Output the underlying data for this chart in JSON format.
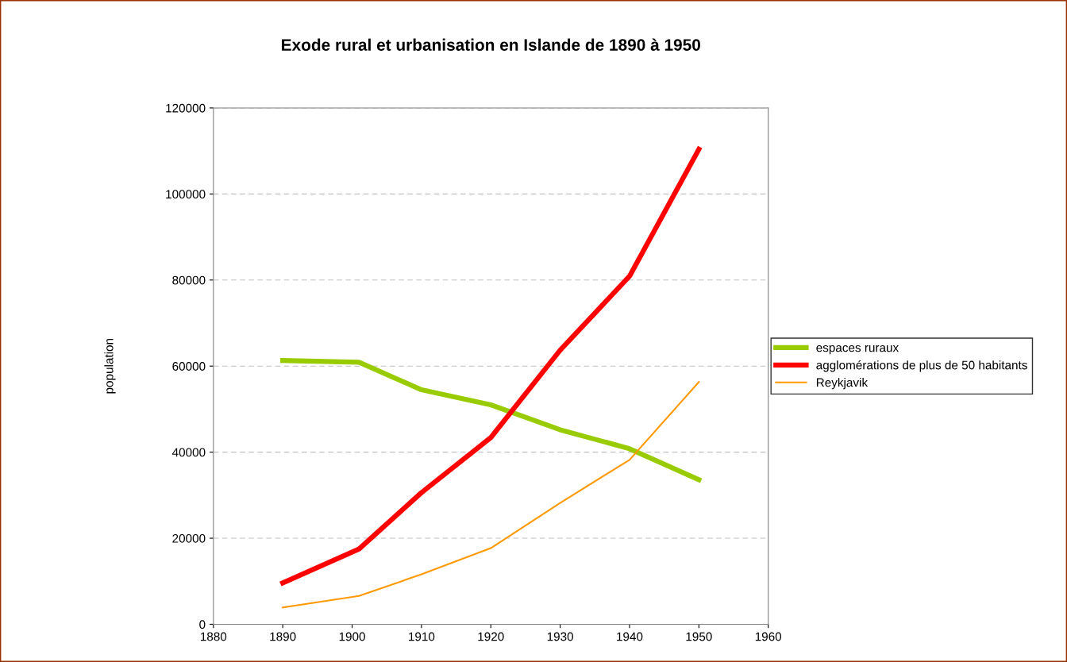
{
  "chart_data": {
    "type": "line",
    "title": "Exode rural et urbanisation en Islande de 1890 à 1950",
    "ylabel": "population",
    "x": [
      1890,
      1901,
      1910,
      1920,
      1930,
      1940,
      1950
    ],
    "series": [
      {
        "name": "espaces ruraux",
        "color": "#99cc00",
        "values": [
          61300,
          60900,
          54500,
          51000,
          45200,
          40800,
          33600
        ]
      },
      {
        "name": "agglomérations de plus de 50 habitants",
        "color": "#ff0000",
        "values": [
          9600,
          17500,
          30600,
          43400,
          63700,
          80900,
          110400
        ]
      },
      {
        "name": "Reykjavik",
        "color": "#ff9900",
        "values": [
          3900,
          6600,
          11600,
          17700,
          28200,
          38200,
          56300
        ]
      }
    ],
    "xlim": [
      1880,
      1960
    ],
    "xticks": [
      1880,
      1890,
      1900,
      1910,
      1920,
      1930,
      1940,
      1950,
      1960
    ],
    "ylim": [
      0,
      120000
    ],
    "yticks": [
      0,
      20000,
      40000,
      60000,
      80000,
      100000,
      120000
    ],
    "grid": "y",
    "legend": "right",
    "marker": "none",
    "line_style": "solid"
  }
}
